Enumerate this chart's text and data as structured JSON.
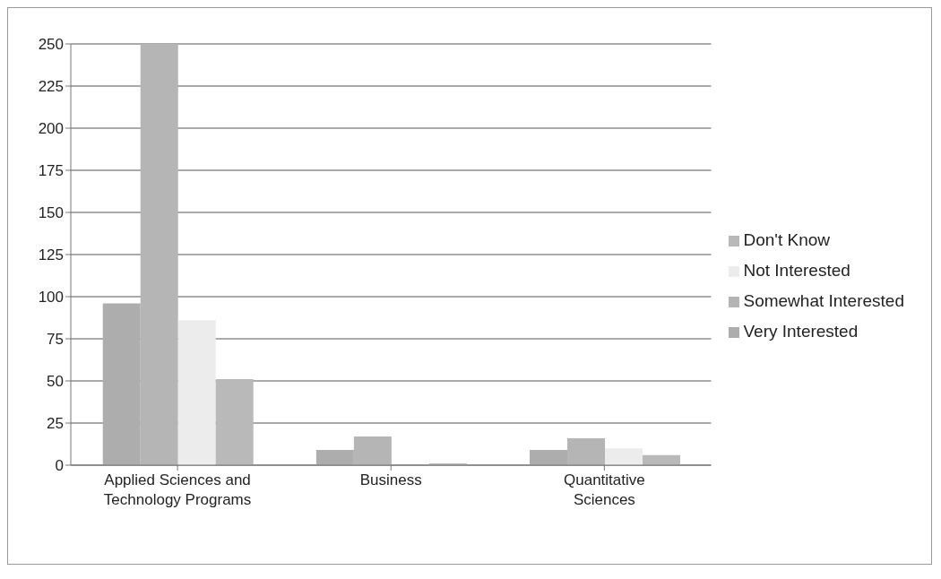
{
  "chart_data": {
    "type": "bar",
    "categories": [
      "Applied Sciences and Technology Programs",
      "Business",
      "Quantitative Sciences"
    ],
    "series": [
      {
        "name": "Very Interested",
        "color": "#adadad",
        "values": [
          96,
          9,
          9
        ]
      },
      {
        "name": "Somewhat Interested",
        "color": "#b5b5b5",
        "values": [
          250,
          17,
          16
        ]
      },
      {
        "name": "Not Interested",
        "color": "#ececec",
        "values": [
          86,
          0,
          10
        ]
      },
      {
        "name": "Don't Know",
        "color": "#b9b9b9",
        "values": [
          51,
          1,
          6
        ]
      }
    ],
    "ylim": [
      0,
      250
    ],
    "yticks": [
      0,
      25,
      50,
      75,
      100,
      125,
      150,
      175,
      200,
      225,
      250
    ],
    "grid": "y",
    "legend": "right"
  }
}
